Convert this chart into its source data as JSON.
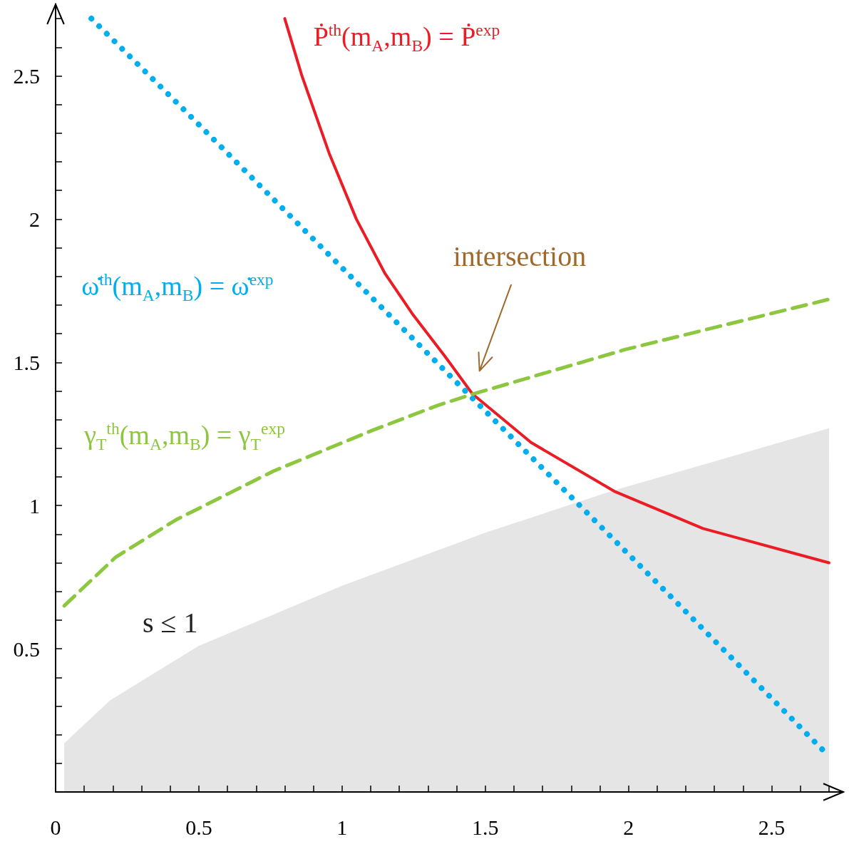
{
  "chart_data": {
    "type": "line",
    "xlim": [
      0,
      2.75
    ],
    "ylim": [
      0,
      2.75
    ],
    "xticks": [
      0,
      {
        "value": 0.1,
        "label": null
      },
      {
        "value": 0.2,
        "label": null
      },
      {
        "value": 0.3,
        "label": null
      },
      {
        "value": 0.4,
        "label": null
      },
      0.5,
      {
        "value": 0.6,
        "label": null
      },
      {
        "value": 0.7,
        "label": null
      },
      {
        "value": 0.8,
        "label": null
      },
      {
        "value": 0.9,
        "label": null
      },
      1,
      {
        "value": 1.1,
        "label": null
      },
      {
        "value": 1.2,
        "label": null
      },
      {
        "value": 1.3,
        "label": null
      },
      {
        "value": 1.4,
        "label": null
      },
      1.5,
      {
        "value": 1.6,
        "label": null
      },
      {
        "value": 1.7,
        "label": null
      },
      {
        "value": 1.8,
        "label": null
      },
      {
        "value": 1.9,
        "label": null
      },
      2,
      {
        "value": 2.1,
        "label": null
      },
      {
        "value": 2.2,
        "label": null
      },
      {
        "value": 2.3,
        "label": null
      },
      {
        "value": 2.4,
        "label": null
      },
      2.5,
      {
        "value": 2.6,
        "label": null
      },
      {
        "value": 2.7,
        "label": null
      }
    ],
    "yticks": [
      {
        "value": 0.1,
        "label": null
      },
      {
        "value": 0.2,
        "label": null
      },
      {
        "value": 0.3,
        "label": null
      },
      {
        "value": 0.4,
        "label": null
      },
      0.5,
      {
        "value": 0.6,
        "label": null
      },
      {
        "value": 0.7,
        "label": null
      },
      {
        "value": 0.8,
        "label": null
      },
      {
        "value": 0.9,
        "label": null
      },
      1,
      {
        "value": 1.1,
        "label": null
      },
      {
        "value": 1.2,
        "label": null
      },
      {
        "value": 1.3,
        "label": null
      },
      {
        "value": 1.4,
        "label": null
      },
      1.5,
      {
        "value": 1.6,
        "label": null
      },
      {
        "value": 1.7,
        "label": null
      },
      {
        "value": 1.8,
        "label": null
      },
      {
        "value": 1.9,
        "label": null
      },
      2,
      {
        "value": 2.1,
        "label": null
      },
      {
        "value": 2.2,
        "label": null
      },
      {
        "value": 2.3,
        "label": null
      },
      {
        "value": 2.4,
        "label": null
      },
      2.5,
      {
        "value": 2.6,
        "label": null
      },
      {
        "value": 2.7,
        "label": null
      }
    ],
    "grid": false,
    "legend": false,
    "marker": "none",
    "annotations": [
      "s ≤ 1",
      "intersection"
    ],
    "series": [
      {
        "type": "area",
        "color": "#e5e5e5",
        "x": [
          0.03,
          0.19,
          0.5,
          1.0,
          1.5,
          1.94,
          2.7
        ],
        "values": [
          0.17,
          0.32,
          0.51,
          0.72,
          0.905,
          1.05,
          1.27
        ]
      },
      {
        "name": "Ṗ$^{th}$(m$_{A}$,m$_{B}$) = Ṗ$^{exp}$",
        "color": "#ec1c24",
        "line_style": "solid",
        "x": [
          0.8,
          0.86,
          0.955,
          1.05,
          1.15,
          1.245,
          1.36,
          1.455,
          1.66,
          1.95,
          2.26,
          2.7
        ],
        "values": [
          2.7,
          2.5,
          2.23,
          2.0,
          1.81,
          1.67,
          1.52,
          1.39,
          1.22,
          1.05,
          0.92,
          0.8
        ]
      },
      {
        "name": "ω̇$^{th}$(m$_{A}$,m$_{B}$) = ω̇$^{exp}$",
        "color": "#00aeef",
        "line_style": "dotted",
        "x": [
          0.125,
          0.45,
          0.81,
          1.14,
          1.46,
          1.82,
          2.18,
          2.68
        ],
        "values": [
          2.7,
          2.38,
          2.02,
          1.69,
          1.37,
          1.01,
          0.65,
          0.145
        ]
      },
      {
        "name": "γ$_{T}$$^{th}$(m$_{A}$,m$_{B}$) = γ$_{T}$$^{exp}$",
        "color": "#8dc63f",
        "line_style": "dashed",
        "x": [
          0.03,
          0.21,
          0.42,
          0.76,
          1.1,
          1.335,
          1.46,
          1.99,
          2.7
        ],
        "values": [
          0.65,
          0.82,
          0.95,
          1.12,
          1.26,
          1.35,
          1.39,
          1.545,
          1.72
        ]
      }
    ]
  }
}
